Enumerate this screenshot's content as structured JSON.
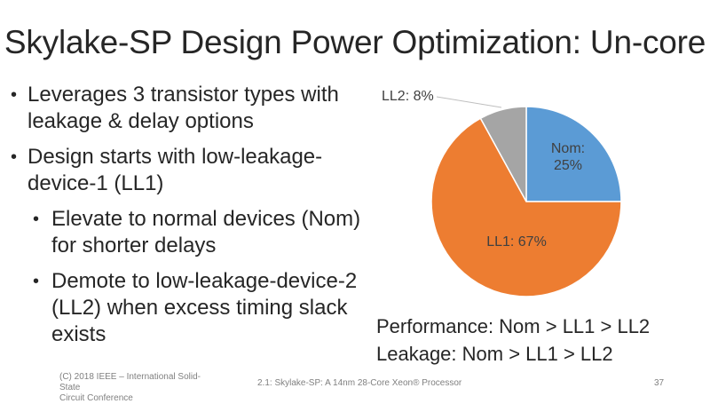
{
  "slide": {
    "title": "Skylake-SP Design Power Optimization: Un-core"
  },
  "bullets": {
    "b1": "Leverages 3 transistor types with leakage & delay options",
    "b2": "Design starts with low-leakage-device-1 (LL1)",
    "b2_sub1": "Elevate to normal devices (Nom) for shorter delays",
    "b2_sub2": "Demote to low-leakage-device-2 (LL2) when excess timing slack exists"
  },
  "chart_data": {
    "type": "pie",
    "slices": [
      {
        "label": "Nom",
        "value": 25,
        "color": "#5B9BD5"
      },
      {
        "label": "LL1",
        "value": 67,
        "color": "#ED7D31"
      },
      {
        "label": "LL2",
        "value": 8,
        "color": "#A5A5A5"
      }
    ],
    "data_labels": {
      "Nom": [
        "Nom:",
        "25%"
      ],
      "LL1": [
        "LL1: 67%"
      ],
      "LL2": [
        "LL2: 8%"
      ]
    }
  },
  "summary": {
    "performance": "Performance: Nom > LL1 > LL2",
    "leakage": "Leakage: Nom > LL1 > LL2"
  },
  "footer": {
    "left_line1": "(C) 2018 IEEE – International Solid-State",
    "left_line2": "Circuit Conference",
    "center": "2.1: Skylake-SP: A 14nm 28-Core Xeon® Processor",
    "page_number": "37"
  }
}
